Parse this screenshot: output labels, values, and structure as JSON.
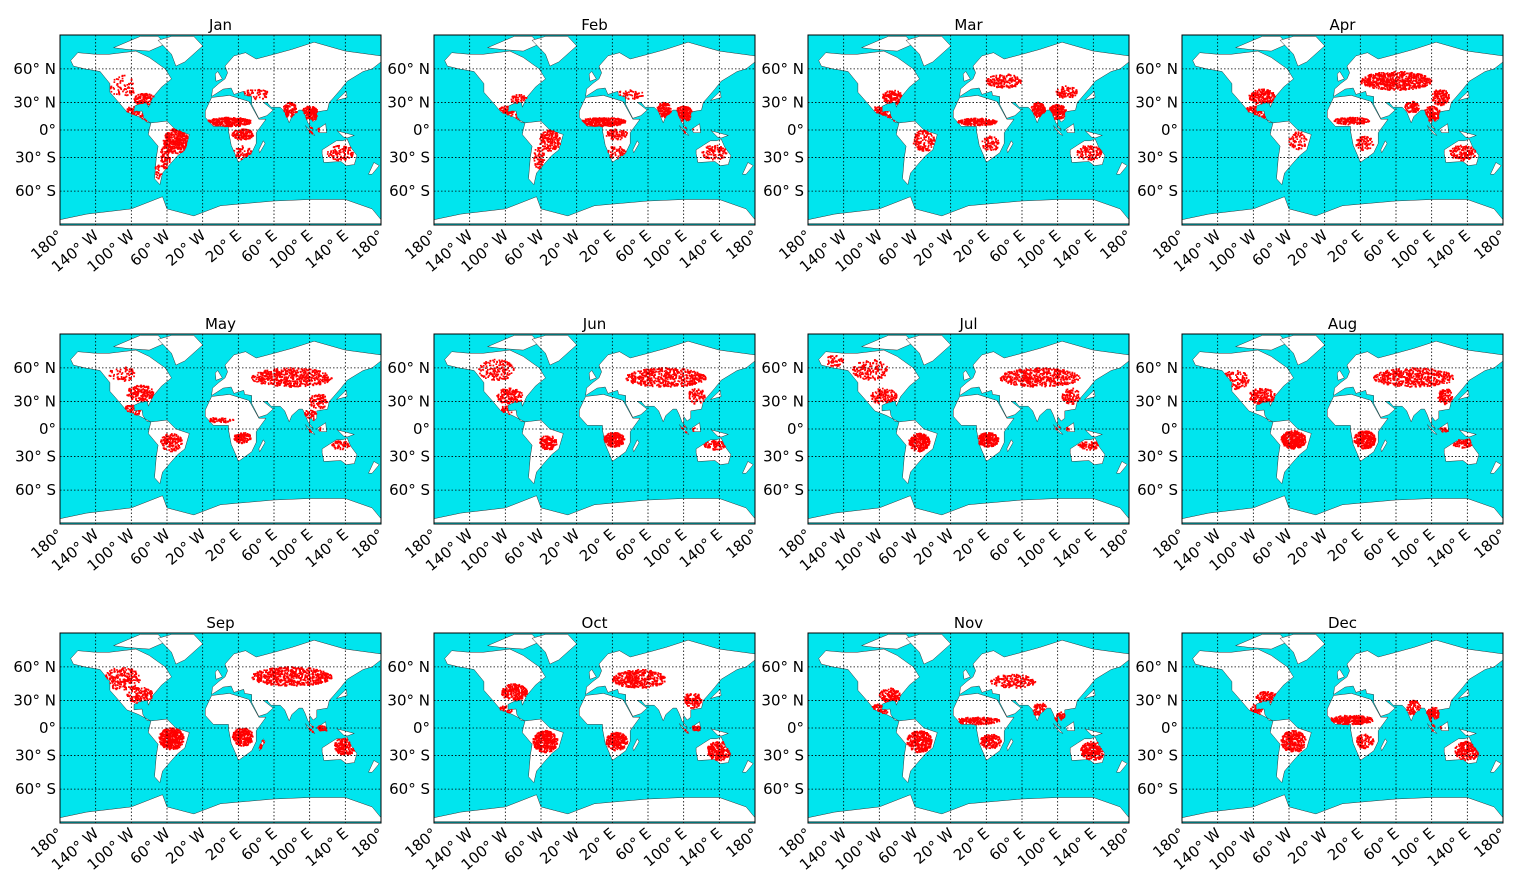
{
  "colors": {
    "ocean": "#00e5ee",
    "land": "#ffffff",
    "fire": "#ff0000",
    "grid": "#000000"
  },
  "lat_ticks": [
    {
      "v": 60,
      "label": "60° N"
    },
    {
      "v": 30,
      "label": "30° N"
    },
    {
      "v": 0,
      "label": "0°"
    },
    {
      "v": -30,
      "label": "30° S"
    },
    {
      "v": -60,
      "label": "60° S"
    }
  ],
  "lon_ticks": [
    {
      "v": -180,
      "label": "180°"
    },
    {
      "v": -140,
      "label": "140° W"
    },
    {
      "v": -100,
      "label": "100° W"
    },
    {
      "v": -60,
      "label": "60° W"
    },
    {
      "v": -20,
      "label": "20° W"
    },
    {
      "v": 20,
      "label": "20° E"
    },
    {
      "v": 60,
      "label": "60° E"
    },
    {
      "v": 100,
      "label": "100° E"
    },
    {
      "v": 140,
      "label": "140° E"
    },
    {
      "v": 180,
      "label": "180°"
    }
  ],
  "months": [
    {
      "title": "Jan",
      "fire_regions": [
        [
          -85,
          33,
          12,
          6,
          0.8
        ],
        [
          -98,
          20,
          8,
          6,
          0.6
        ],
        [
          -85,
          14,
          6,
          4,
          0.7
        ],
        [
          -50,
          -12,
          14,
          14,
          0.8
        ],
        [
          -62,
          -30,
          6,
          12,
          0.5
        ],
        [
          -70,
          -45,
          4,
          8,
          0.3
        ],
        [
          10,
          9,
          25,
          5,
          1
        ],
        [
          25,
          -5,
          12,
          6,
          0.7
        ],
        [
          25,
          -25,
          10,
          8,
          0.4
        ],
        [
          78,
          22,
          8,
          8,
          0.8
        ],
        [
          100,
          18,
          10,
          8,
          0.9
        ],
        [
          105,
          0,
          6,
          4,
          0.7
        ],
        [
          135,
          -25,
          15,
          8,
          0.35
        ],
        [
          -110,
          45,
          15,
          10,
          0.2
        ],
        [
          40,
          38,
          15,
          5,
          0.3
        ]
      ]
    },
    {
      "title": "Feb",
      "fire_regions": [
        [
          -85,
          33,
          10,
          5,
          0.5
        ],
        [
          -100,
          20,
          10,
          6,
          0.8
        ],
        [
          -85,
          14,
          6,
          4,
          0.8
        ],
        [
          -50,
          -12,
          12,
          12,
          0.5
        ],
        [
          -62,
          -30,
          6,
          12,
          0.4
        ],
        [
          10,
          9,
          25,
          5,
          1
        ],
        [
          25,
          -5,
          12,
          6,
          0.5
        ],
        [
          25,
          -25,
          10,
          8,
          0.3
        ],
        [
          78,
          22,
          8,
          8,
          0.9
        ],
        [
          100,
          18,
          10,
          8,
          1
        ],
        [
          105,
          0,
          6,
          4,
          0.6
        ],
        [
          135,
          -25,
          15,
          8,
          0.35
        ],
        [
          40,
          38,
          15,
          5,
          0.3
        ]
      ]
    },
    {
      "title": "Mar",
      "fire_regions": [
        [
          -85,
          35,
          12,
          7,
          0.7
        ],
        [
          -100,
          20,
          10,
          6,
          0.8
        ],
        [
          -85,
          14,
          6,
          4,
          0.8
        ],
        [
          -50,
          -12,
          12,
          12,
          0.4
        ],
        [
          10,
          9,
          22,
          4,
          1
        ],
        [
          25,
          -15,
          10,
          8,
          0.4
        ],
        [
          78,
          22,
          8,
          8,
          0.9
        ],
        [
          100,
          20,
          10,
          8,
          1
        ],
        [
          40,
          50,
          20,
          6,
          0.6
        ],
        [
          110,
          40,
          12,
          6,
          0.5
        ],
        [
          135,
          -25,
          15,
          8,
          0.4
        ]
      ]
    },
    {
      "title": "Apr",
      "fire_regions": [
        [
          -90,
          35,
          15,
          8,
          0.7
        ],
        [
          -100,
          20,
          10,
          6,
          0.8
        ],
        [
          -85,
          14,
          6,
          4,
          0.7
        ],
        [
          -50,
          -12,
          10,
          10,
          0.3
        ],
        [
          10,
          10,
          20,
          4,
          0.8
        ],
        [
          25,
          -15,
          10,
          8,
          0.4
        ],
        [
          60,
          50,
          40,
          8,
          0.8
        ],
        [
          110,
          35,
          10,
          8,
          0.7
        ],
        [
          100,
          18,
          10,
          8,
          0.9
        ],
        [
          78,
          25,
          8,
          6,
          0.7
        ],
        [
          135,
          -25,
          15,
          8,
          0.5
        ]
      ]
    },
    {
      "title": "May",
      "fire_regions": [
        [
          -90,
          38,
          15,
          8,
          0.6
        ],
        [
          -100,
          20,
          10,
          6,
          0.6
        ],
        [
          -110,
          55,
          15,
          6,
          0.3
        ],
        [
          -55,
          -15,
          12,
          10,
          0.5
        ],
        [
          25,
          -10,
          10,
          6,
          0.8
        ],
        [
          0,
          10,
          15,
          3,
          0.5
        ],
        [
          80,
          52,
          45,
          8,
          0.6
        ],
        [
          110,
          30,
          10,
          8,
          0.5
        ],
        [
          100,
          15,
          8,
          6,
          0.5
        ],
        [
          105,
          0,
          8,
          4,
          0.5
        ],
        [
          135,
          -18,
          10,
          5,
          0.5
        ]
      ]
    },
    {
      "title": "Jun",
      "fire_regions": [
        [
          -110,
          58,
          20,
          8,
          0.4
        ],
        [
          -95,
          35,
          15,
          8,
          0.5
        ],
        [
          -100,
          20,
          8,
          5,
          0.4
        ],
        [
          -52,
          -15,
          10,
          8,
          0.8
        ],
        [
          22,
          -12,
          12,
          8,
          1
        ],
        [
          80,
          52,
          45,
          8,
          0.6
        ],
        [
          115,
          35,
          10,
          8,
          0.4
        ],
        [
          105,
          0,
          8,
          4,
          0.5
        ],
        [
          135,
          -18,
          12,
          5,
          0.5
        ]
      ]
    },
    {
      "title": "Jul",
      "fire_regions": [
        [
          -150,
          65,
          10,
          4,
          0.5
        ],
        [
          -110,
          58,
          20,
          8,
          0.4
        ],
        [
          -95,
          35,
          15,
          8,
          0.5
        ],
        [
          -55,
          -15,
          12,
          10,
          0.9
        ],
        [
          22,
          -12,
          12,
          8,
          1
        ],
        [
          80,
          52,
          45,
          8,
          0.6
        ],
        [
          115,
          35,
          10,
          8,
          0.5
        ],
        [
          105,
          0,
          8,
          4,
          0.6
        ],
        [
          135,
          -18,
          12,
          5,
          0.5
        ]
      ]
    },
    {
      "title": "Aug",
      "fire_regions": [
        [
          -120,
          50,
          15,
          8,
          0.4
        ],
        [
          -90,
          35,
          15,
          8,
          0.6
        ],
        [
          -55,
          -12,
          14,
          10,
          1
        ],
        [
          25,
          -12,
          12,
          10,
          1
        ],
        [
          80,
          52,
          45,
          8,
          0.6
        ],
        [
          115,
          35,
          8,
          8,
          0.7
        ],
        [
          110,
          -2,
          8,
          4,
          0.8
        ],
        [
          135,
          -16,
          12,
          5,
          0.6
        ]
      ]
    },
    {
      "title": "Sep",
      "fire_regions": [
        [
          -110,
          50,
          20,
          10,
          0.5
        ],
        [
          -90,
          35,
          15,
          8,
          0.5
        ],
        [
          -55,
          -12,
          14,
          12,
          1
        ],
        [
          25,
          -10,
          12,
          10,
          0.9
        ],
        [
          46,
          -18,
          3,
          6,
          0.8
        ],
        [
          80,
          52,
          45,
          8,
          0.7
        ],
        [
          110,
          -2,
          10,
          5,
          0.9
        ],
        [
          140,
          -20,
          12,
          10,
          0.7
        ]
      ]
    },
    {
      "title": "Oct",
      "fire_regions": [
        [
          -90,
          38,
          15,
          8,
          0.8
        ],
        [
          -100,
          20,
          8,
          5,
          0.5
        ],
        [
          -55,
          -15,
          14,
          12,
          0.9
        ],
        [
          25,
          -15,
          12,
          10,
          0.8
        ],
        [
          50,
          50,
          30,
          8,
          0.7
        ],
        [
          110,
          30,
          10,
          8,
          0.6
        ],
        [
          110,
          -2,
          10,
          5,
          0.7
        ],
        [
          140,
          -25,
          14,
          10,
          0.7
        ]
      ]
    },
    {
      "title": "Nov",
      "fire_regions": [
        [
          -88,
          35,
          12,
          7,
          0.7
        ],
        [
          -100,
          20,
          10,
          6,
          0.6
        ],
        [
          -55,
          -15,
          14,
          12,
          0.8
        ],
        [
          10,
          8,
          25,
          4,
          0.8
        ],
        [
          25,
          -15,
          12,
          8,
          0.7
        ],
        [
          50,
          48,
          25,
          6,
          0.5
        ],
        [
          80,
          20,
          8,
          8,
          0.6
        ],
        [
          105,
          10,
          8,
          8,
          0.7
        ],
        [
          140,
          -25,
          14,
          10,
          0.8
        ]
      ]
    },
    {
      "title": "Dec",
      "fire_regions": [
        [
          -85,
          33,
          12,
          6,
          0.7
        ],
        [
          -98,
          20,
          8,
          6,
          0.6
        ],
        [
          -55,
          -15,
          14,
          12,
          0.7
        ],
        [
          10,
          9,
          25,
          5,
          1
        ],
        [
          25,
          -15,
          10,
          8,
          0.5
        ],
        [
          80,
          22,
          8,
          8,
          0.6
        ],
        [
          102,
          15,
          8,
          8,
          0.8
        ],
        [
          105,
          0,
          6,
          4,
          0.6
        ],
        [
          140,
          -25,
          14,
          10,
          0.7
        ]
      ]
    }
  ]
}
